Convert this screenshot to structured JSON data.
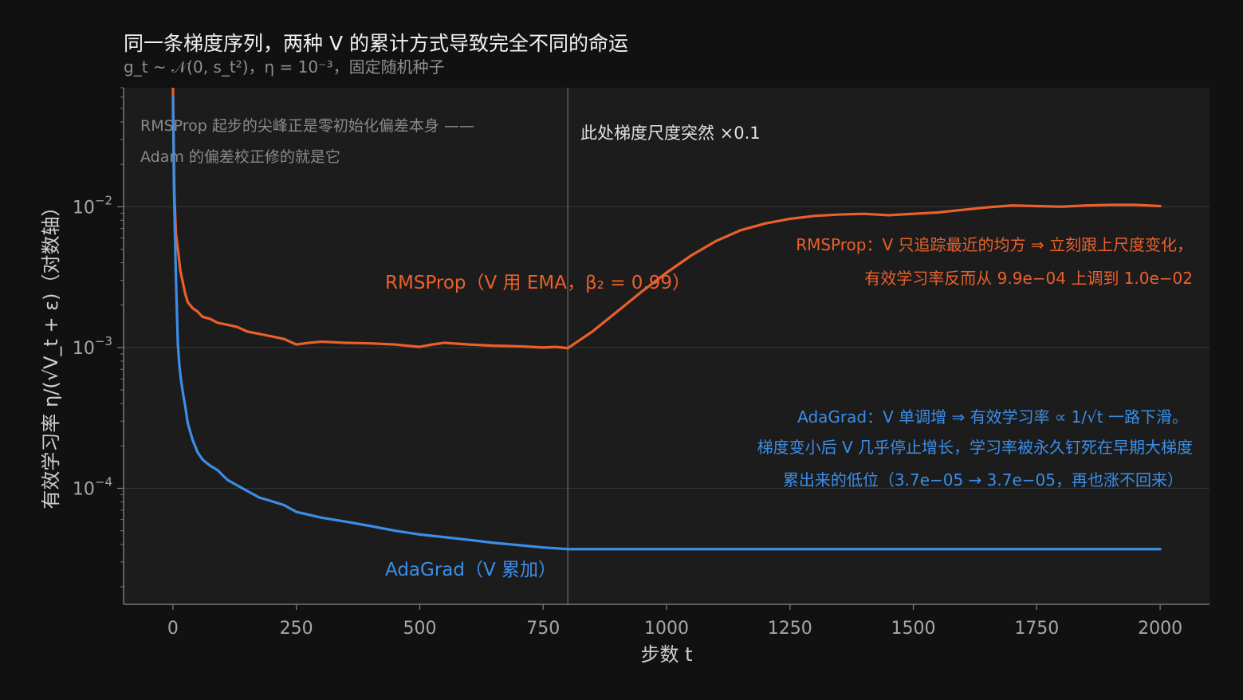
{
  "chart_data": {
    "type": "line",
    "title": "同一条梯度序列，两种 V 的累计方式导致完全不同的命运",
    "subtitle": "g_t ~ 𝒩(0, s_t²)，η = 10⁻³，固定随机种子",
    "xlabel": "步数 t",
    "ylabel": "有效学习率 η/(√V_t + ε)（对数轴）",
    "y_scale": "log",
    "xlim": [
      -100,
      2100
    ],
    "ylim": [
      1.5e-05,
      0.07
    ],
    "x_ticks": [
      0,
      250,
      500,
      750,
      1000,
      1250,
      1500,
      1750,
      2000
    ],
    "x_tick_labels": [
      "0",
      "250",
      "500",
      "750",
      "1000",
      "1250",
      "1500",
      "1750",
      "2000"
    ],
    "y_ticks": [
      0.0001,
      0.001,
      0.01
    ],
    "y_tick_labels": [
      {
        "base": "10",
        "exp": "−4"
      },
      {
        "base": "10",
        "exp": "−3"
      },
      {
        "base": "10",
        "exp": "−2"
      }
    ],
    "grid": true,
    "vline_x": 800,
    "series": [
      {
        "name": "RMSProp（V 用 EMA，β₂ = 0.99）",
        "color": "#e9602b",
        "x": [
          0,
          3,
          6,
          10,
          15,
          20,
          25,
          30,
          40,
          50,
          60,
          75,
          90,
          110,
          130,
          150,
          175,
          200,
          225,
          250,
          275,
          300,
          350,
          400,
          450,
          500,
          525,
          550,
          600,
          650,
          700,
          750,
          775,
          800,
          850,
          900,
          950,
          1000,
          1050,
          1100,
          1150,
          1200,
          1250,
          1300,
          1350,
          1400,
          1450,
          1500,
          1550,
          1600,
          1650,
          1700,
          1750,
          1800,
          1850,
          1900,
          1950,
          2000
        ],
        "values": [
          0.07,
          0.012,
          0.0065,
          0.005,
          0.0035,
          0.0029,
          0.0024,
          0.0021,
          0.0019,
          0.0018,
          0.00165,
          0.0016,
          0.0015,
          0.00145,
          0.0014,
          0.0013,
          0.00125,
          0.0012,
          0.00115,
          0.00105,
          0.00108,
          0.0011,
          0.00108,
          0.00107,
          0.00105,
          0.00101,
          0.00105,
          0.00108,
          0.00105,
          0.00103,
          0.00102,
          0.001,
          0.00101,
          0.00099,
          0.0013,
          0.0018,
          0.0025,
          0.0034,
          0.0045,
          0.0057,
          0.0068,
          0.0076,
          0.0082,
          0.0086,
          0.0088,
          0.0089,
          0.0087,
          0.0089,
          0.0091,
          0.0095,
          0.0099,
          0.0102,
          0.0101,
          0.01,
          0.0102,
          0.0103,
          0.0103,
          0.0101
        ]
      },
      {
        "name": "AdaGrad（V 累加）",
        "color": "#3b8ee8",
        "x": [
          0,
          2,
          4,
          6,
          8,
          10,
          13,
          16,
          20,
          25,
          30,
          40,
          50,
          60,
          75,
          90,
          110,
          130,
          150,
          175,
          200,
          225,
          250,
          300,
          350,
          400,
          450,
          500,
          550,
          600,
          650,
          700,
          750,
          800,
          900,
          1000,
          1200,
          1400,
          1600,
          1800,
          2000
        ],
        "values": [
          0.06,
          0.014,
          0.0065,
          0.0032,
          0.0018,
          0.00105,
          0.00075,
          0.0006,
          0.00048,
          0.00038,
          0.00029,
          0.00022,
          0.00018,
          0.00016,
          0.000145,
          0.000135,
          0.000115,
          0.000105,
          9.6e-05,
          8.6e-05,
          8.1e-05,
          7.6e-05,
          6.8e-05,
          6.2e-05,
          5.8e-05,
          5.4e-05,
          5e-05,
          4.7e-05,
          4.5e-05,
          4.3e-05,
          4.1e-05,
          3.95e-05,
          3.8e-05,
          3.7e-05,
          3.7e-05,
          3.7e-05,
          3.7e-05,
          3.7e-05,
          3.7e-05,
          3.7e-05,
          3.7e-05
        ]
      }
    ],
    "series_labels": {
      "rmsprop": "RMSProp（V 用 EMA，β₂ = 0.99）",
      "adagrad": "AdaGrad（V 累加）"
    },
    "annotations": {
      "gray_line1": "RMSProp 起步的尖峰正是零初始化偏差本身 ——",
      "gray_line2": "Adam 的偏差校正修的就是它",
      "vline_note": "此处梯度尺度突然 ×0.1",
      "orange_line1": "RMSProp：V 只追踪最近的均方 ⇒ 立刻跟上尺度变化，",
      "orange_line2": "有效学习率反而从 9.9e−04 上调到 1.0e−02",
      "blue_line1": "AdaGrad：V 单调增 ⇒ 有效学习率 ∝ 1/√t 一路下滑。",
      "blue_line2": "梯度变小后 V 几乎停止增长，学习率被永久钉死在早期大梯度",
      "blue_line3": "累出来的低位（3.7e−05 → 3.7e−05，再也涨不回来）"
    }
  },
  "colors": {
    "background": "#111111",
    "plot_background": "#1c1c1c",
    "grid": "#333333",
    "axis": "#777777",
    "vline": "#5a5a5a",
    "rmsprop": "#e9602b",
    "adagrad": "#3b8ee8"
  }
}
